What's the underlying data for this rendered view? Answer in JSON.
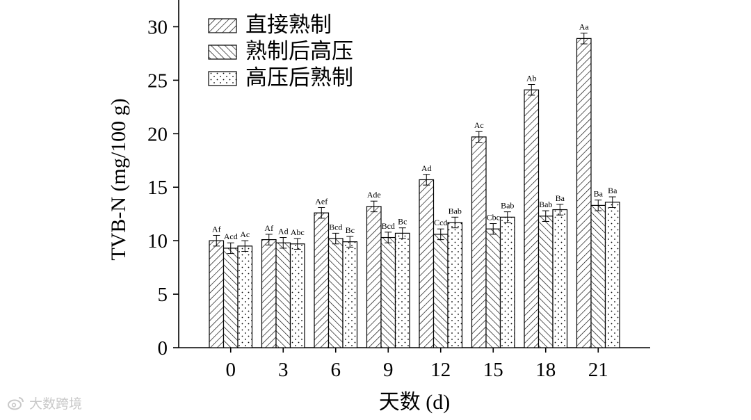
{
  "chart_data": {
    "type": "bar",
    "categories": [
      "0",
      "3",
      "6",
      "9",
      "12",
      "15",
      "18",
      "21"
    ],
    "xlabel": "天数 (d)",
    "ylabel": "TVB-N (mg/100 g)",
    "ylim": [
      0,
      32.5
    ],
    "yticks": [
      0,
      5,
      10,
      15,
      20,
      25,
      30
    ],
    "grid": false,
    "legend_position": "top-left",
    "series": [
      {
        "name": "直接熟制",
        "pattern": "forward-diagonal-hatch",
        "values": [
          10.0,
          10.1,
          12.6,
          13.2,
          15.7,
          19.7,
          24.1,
          28.9
        ],
        "errors": [
          0.5,
          0.5,
          0.5,
          0.5,
          0.5,
          0.5,
          0.5,
          0.5
        ],
        "labels": [
          "Af",
          "Af",
          "Aef",
          "Ade",
          "Ad",
          "Ac",
          "Ab",
          "Aa"
        ]
      },
      {
        "name": "熟制后高压",
        "pattern": "backward-diagonal-hatch",
        "values": [
          9.3,
          9.8,
          10.2,
          10.3,
          10.6,
          11.1,
          12.3,
          13.3
        ],
        "errors": [
          0.5,
          0.5,
          0.5,
          0.5,
          0.5,
          0.5,
          0.5,
          0.5
        ],
        "labels": [
          "Acd",
          "Ad",
          "Bcd",
          "Bcd",
          "Ccd",
          "Cbc",
          "Bab",
          "Ba"
        ]
      },
      {
        "name": "高压后熟制",
        "pattern": "dots",
        "values": [
          9.5,
          9.7,
          9.9,
          10.7,
          11.7,
          12.2,
          12.9,
          13.6
        ],
        "errors": [
          0.5,
          0.5,
          0.5,
          0.5,
          0.5,
          0.5,
          0.5,
          0.5
        ],
        "labels": [
          "Ac",
          "Abc",
          "Bc",
          "Bc",
          "Bab",
          "Bab",
          "Ba",
          "Ba"
        ]
      }
    ]
  },
  "watermark": {
    "text": "大数跨境",
    "icon": "weibo-logo-icon"
  }
}
